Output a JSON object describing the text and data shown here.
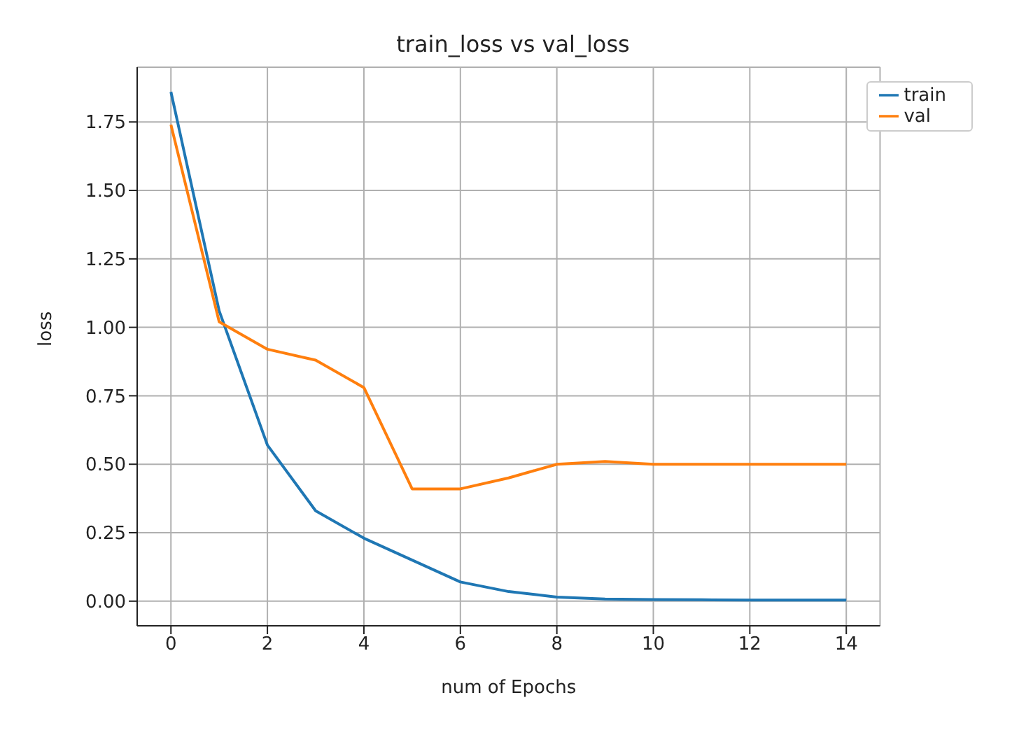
{
  "chart_data": {
    "type": "line",
    "title": "train_loss vs val_loss",
    "xlabel": "num of Epochs",
    "ylabel": "loss",
    "x": [
      0,
      1,
      2,
      3,
      4,
      5,
      6,
      7,
      8,
      9,
      10,
      11,
      12,
      13,
      14
    ],
    "series": [
      {
        "name": "train",
        "color": "#1f77b4",
        "values": [
          1.86,
          1.06,
          0.57,
          0.33,
          0.23,
          0.15,
          0.07,
          0.035,
          0.015,
          0.008,
          0.006,
          0.005,
          0.004,
          0.004,
          0.004
        ]
      },
      {
        "name": "val",
        "color": "#ff7f0e",
        "values": [
          1.74,
          1.02,
          0.92,
          0.88,
          0.78,
          0.41,
          0.41,
          0.45,
          0.5,
          0.51,
          0.5,
          0.5,
          0.5,
          0.5,
          0.5
        ]
      }
    ],
    "xlim": [
      -0.7,
      14.7
    ],
    "xticks": [
      0,
      2,
      4,
      6,
      8,
      10,
      12,
      14
    ],
    "ylim": [
      -0.09,
      1.95
    ],
    "yticks": [
      {
        "value": 0,
        "label": "0.00"
      },
      0.25,
      {
        "value": 0.5,
        "label": "0.50"
      },
      0.75,
      {
        "value": 1,
        "label": "1.00"
      },
      1.25,
      {
        "value": 1.5,
        "label": "1.50"
      },
      1.75
    ],
    "grid": true,
    "legend": "top right",
    "marker": "none",
    "line_style": "solid"
  }
}
